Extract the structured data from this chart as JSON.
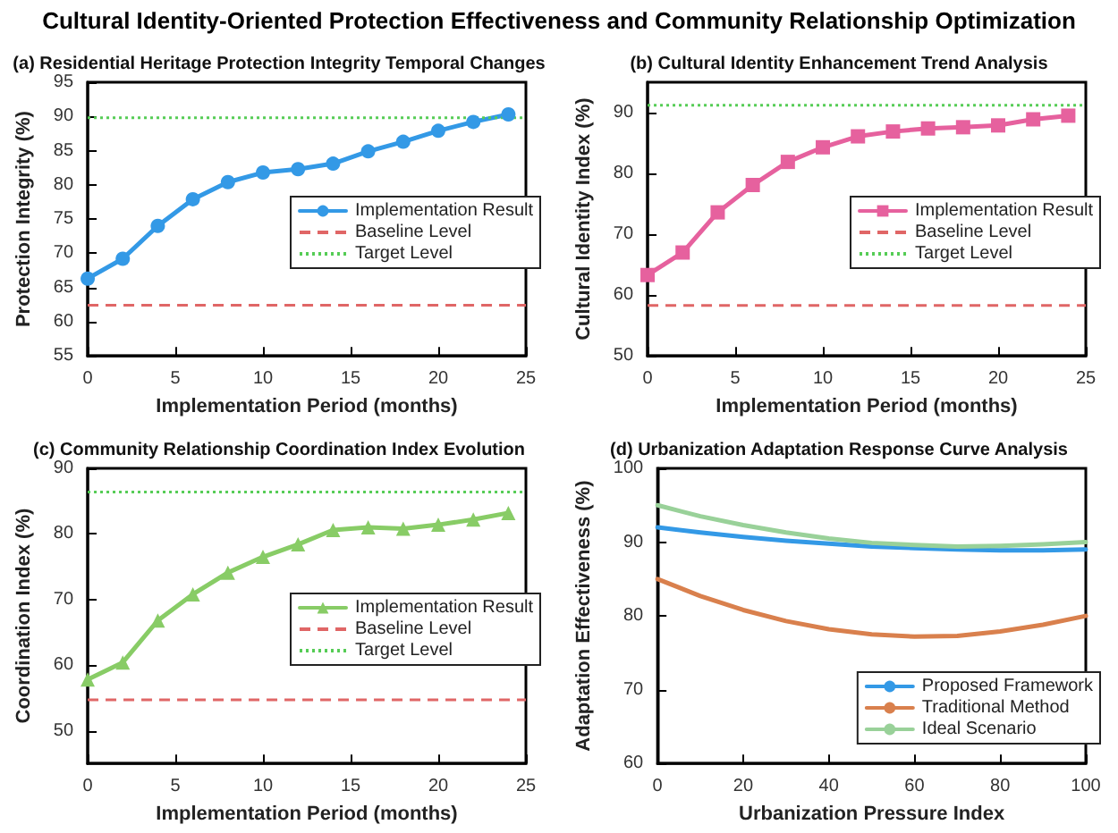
{
  "chart_data": [
    {
      "type": "line",
      "title": "(a) Residential Heritage Protection Integrity Temporal Changes",
      "annotations": [
        "Cultural Identity-Oriented Protection Effectiveness and Community Relationship Optimization"
      ],
      "xlabel": "Implementation Period (months)",
      "ylabel": "Protection Integrity (%)",
      "x": [
        0,
        2,
        4,
        6,
        8,
        10,
        12,
        14,
        16,
        18,
        20,
        22,
        24
      ],
      "series": [
        {
          "name": "Implementation Result",
          "color": "#3399e6",
          "values": [
            66.3,
            69.2,
            74.0,
            77.9,
            80.4,
            81.8,
            82.3,
            83.1,
            84.9,
            86.3,
            87.9,
            89.2,
            90.3
          ]
        }
      ],
      "ref_lines": [
        {
          "axis": "y",
          "value": 62.4,
          "label": "Baseline Level",
          "color": "#e06666",
          "line_style": "dashed"
        },
        {
          "axis": "y",
          "value": 89.8,
          "label": "Target Level",
          "color": "#55cc55",
          "line_style": "dotted"
        }
      ],
      "xlim": [
        0,
        25
      ],
      "xticks": [
        0,
        5,
        10,
        15,
        20,
        25
      ],
      "ylim": [
        55,
        95
      ],
      "yticks": [
        55,
        60,
        65,
        70,
        75,
        80,
        85,
        90,
        95
      ],
      "marker": "circle",
      "line_style": "solid",
      "legend": "right",
      "grid": false
    },
    {
      "type": "line",
      "title": "(b) Cultural Identity Enhancement Trend Analysis",
      "xlabel": "Implementation Period (months)",
      "ylabel": "Cultural Identity Index (%)",
      "x": [
        0,
        2,
        4,
        6,
        8,
        10,
        12,
        14,
        16,
        18,
        20,
        22,
        24
      ],
      "series": [
        {
          "name": "Implementation Result",
          "color": "#e6619e",
          "values": [
            63.3,
            67.0,
            73.6,
            78.1,
            81.9,
            84.3,
            86.1,
            86.9,
            87.4,
            87.6,
            87.9,
            88.9,
            89.5
          ]
        }
      ],
      "ref_lines": [
        {
          "axis": "y",
          "value": 58.3,
          "label": "Baseline Level",
          "color": "#e06666",
          "line_style": "dashed"
        },
        {
          "axis": "y",
          "value": 91.2,
          "label": "Target Level",
          "color": "#55cc55",
          "line_style": "dotted"
        }
      ],
      "xlim": [
        0,
        25
      ],
      "xticks": [
        0,
        5,
        10,
        15,
        20,
        25
      ],
      "ylim": [
        50,
        95
      ],
      "yticks": [
        50,
        60,
        70,
        80,
        90
      ],
      "marker": "square",
      "line_style": "solid",
      "legend": "right",
      "grid": false
    },
    {
      "type": "line",
      "title": "(c) Community Relationship Coordination Index Evolution",
      "xlabel": "Implementation Period (months)",
      "ylabel": "Coordination Index (%)",
      "x": [
        0,
        2,
        4,
        6,
        8,
        10,
        12,
        14,
        16,
        18,
        20,
        22,
        24
      ],
      "series": [
        {
          "name": "Implementation Result",
          "color": "#88cc66",
          "values": [
            57.8,
            60.4,
            66.8,
            70.8,
            74.1,
            76.5,
            78.4,
            80.6,
            81.0,
            80.8,
            81.4,
            82.2,
            83.2
          ]
        }
      ],
      "ref_lines": [
        {
          "axis": "y",
          "value": 54.7,
          "label": "Baseline Level",
          "color": "#e06666",
          "line_style": "dashed"
        },
        {
          "axis": "y",
          "value": 86.4,
          "label": "Target Level",
          "color": "#55cc55",
          "line_style": "dotted"
        }
      ],
      "xlim": [
        0,
        25
      ],
      "xticks": [
        0,
        5,
        10,
        15,
        20,
        25
      ],
      "ylim": [
        45,
        90
      ],
      "yticks": [
        50,
        60,
        70,
        80,
        90
      ],
      "marker": "triangle",
      "line_style": "solid",
      "legend": "right",
      "grid": false
    },
    {
      "type": "line",
      "title": "(d) Urbanization Adaptation Response Curve Analysis",
      "xlabel": "Urbanization Pressure Index",
      "ylabel": "Adaptation Effectiveness (%)",
      "x": [
        0,
        10,
        20,
        30,
        40,
        50,
        60,
        70,
        80,
        90,
        100
      ],
      "series": [
        {
          "name": "Proposed Framework",
          "color": "#3399e6",
          "values": [
            92.0,
            91.3,
            90.7,
            90.2,
            89.8,
            89.4,
            89.2,
            89.0,
            88.9,
            88.9,
            89.0
          ]
        },
        {
          "name": "Traditional Method",
          "color": "#d9804d",
          "values": [
            85.0,
            82.7,
            80.8,
            79.3,
            78.2,
            77.5,
            77.2,
            77.3,
            77.9,
            78.8,
            80.0
          ]
        },
        {
          "name": "Ideal Scenario",
          "color": "#99d199",
          "values": [
            95.0,
            93.5,
            92.3,
            91.3,
            90.5,
            89.9,
            89.6,
            89.4,
            89.5,
            89.7,
            90.0
          ]
        }
      ],
      "xlim": [
        0,
        100
      ],
      "xticks": [
        0,
        20,
        40,
        60,
        80,
        100
      ],
      "ylim": [
        60,
        100
      ],
      "yticks": [
        60,
        70,
        80,
        90,
        100
      ],
      "marker": "none",
      "line_style": "solid",
      "legend": "bottom right",
      "grid": false
    }
  ]
}
